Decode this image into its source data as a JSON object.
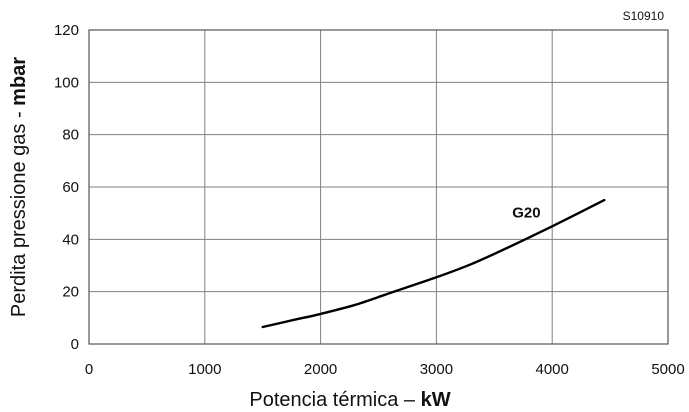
{
  "figure_code": "S10910",
  "chart_data": {
    "type": "line",
    "xlabel": {
      "normal": "Potencia térmica – ",
      "bold": "kW"
    },
    "ylabel": {
      "normal": "Perdita pressione gas - ",
      "bold": "mbar"
    },
    "xlim": [
      0,
      5000
    ],
    "ylim": [
      0,
      120
    ],
    "xticks": [
      "0",
      "1000",
      "2000",
      "3000",
      "4000",
      "5000"
    ],
    "yticks": [
      "0",
      "20",
      "40",
      "60",
      "80",
      "100",
      "120"
    ],
    "grid": true,
    "colors": {
      "line": "#000000",
      "grid": "#808080",
      "frame": "#555555"
    },
    "series": [
      {
        "name": "G20",
        "x": [
          1500,
          1800,
          2000,
          2300,
          2600,
          3000,
          3300,
          3600,
          4000,
          4450
        ],
        "y": [
          6.5,
          9.5,
          11.5,
          15,
          19.5,
          25.5,
          30.5,
          36.5,
          45,
          55
        ]
      }
    ]
  }
}
